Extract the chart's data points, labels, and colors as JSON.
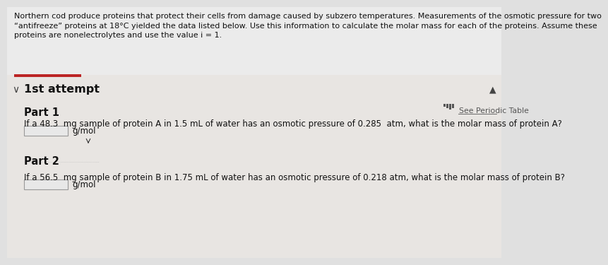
{
  "bg_color": "#e0e0e0",
  "top_bg_color": "#e8e8e8",
  "body_bg_color": "#f0eeec",
  "header_text_lines": [
    "Northern cod produce proteins that protect their cells from damage caused by subzero temperatures. Measurements of the osmotic pressure for two",
    "“antifreeze” proteins at 18°C yielded the data listed below. Use this information to calculate the molar mass for each of the proteins. Assume these",
    "proteins are nonelectrolytes and use the value i = 1."
  ],
  "attempt_label": "1st attempt",
  "part1_label": "Part 1",
  "see_periodic_table": "See Periodic Table",
  "part1_question": "If a 48.3  mg sample of protein A in 1.5 mL of water has an osmotic pressure of 0.285  atm, what is the molar mass of protein A?",
  "part1_unit": "g/mol",
  "part2_label": "Part 2",
  "part2_question": "If a 56.5  mg sample of protein B in 1.75 mL of water has an osmotic pressure of 0.218 atm, what is the molar mass of protein B?",
  "part2_unit": "g/mol",
  "header_font_size": 8.0,
  "body_font_size": 8.5,
  "label_font_size": 10.5,
  "attempt_font_size": 11.5,
  "red_line_color": "#bb2222",
  "input_box_color": "#e8e8e8",
  "input_box_border": "#999999",
  "chevron_color": "#444444",
  "text_color": "#111111",
  "muted_color": "#555555",
  "periodic_color": "#555555"
}
